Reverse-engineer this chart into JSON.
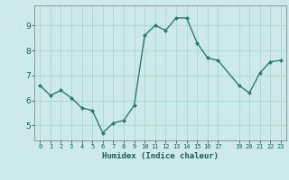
{
  "x": [
    0,
    1,
    2,
    3,
    4,
    5,
    6,
    7,
    8,
    9,
    10,
    11,
    12,
    13,
    14,
    15,
    16,
    17,
    19,
    20,
    21,
    22,
    23
  ],
  "y": [
    6.6,
    6.2,
    6.4,
    6.1,
    5.7,
    5.6,
    4.7,
    5.1,
    5.2,
    5.8,
    8.6,
    9.0,
    8.8,
    9.3,
    9.3,
    8.3,
    7.7,
    7.6,
    6.6,
    6.3,
    7.1,
    7.55,
    7.6
  ],
  "line_color": "#2d7a6e",
  "marker_color": "#2d7a6e",
  "bg_color": "#cdeaea",
  "grid_color": "#b0d4d0",
  "axis_label_color": "#1a5c54",
  "tick_color": "#1a5c54",
  "xlabel": "Humidex (Indice chaleur)",
  "xlim": [
    -0.5,
    23.5
  ],
  "ylim": [
    4.4,
    9.8
  ],
  "yticks": [
    5,
    6,
    7,
    8,
    9
  ],
  "xticks": [
    0,
    1,
    2,
    3,
    4,
    5,
    6,
    7,
    8,
    9,
    10,
    11,
    12,
    13,
    14,
    15,
    16,
    17,
    19,
    20,
    21,
    22,
    23
  ],
  "xtick_labels": [
    "0",
    "1",
    "2",
    "3",
    "4",
    "5",
    "6",
    "7",
    "8",
    "9",
    "10",
    "11",
    "12",
    "13",
    "14",
    "15",
    "16",
    "17",
    "19",
    "20",
    "21",
    "22",
    "23"
  ]
}
